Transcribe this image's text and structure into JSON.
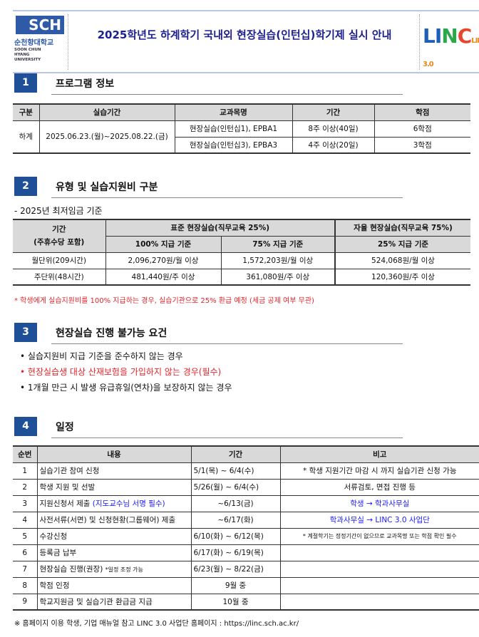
{
  "header": {
    "title": "2025학년도 하계학기 국내외 현장실습(인턴십)학기제 실시 안내",
    "logo_sch": "SCH",
    "logo_ko": "순천향대학교",
    "logo_en": "SOON CHUN HYANG UNIVERSITY",
    "logo_linc": "LINC 3.0"
  },
  "colors": {
    "accent": "#1e4f97",
    "title": "#1d1f8f",
    "red": "#e8232a",
    "blue": "#1a1aff"
  },
  "sections": [
    {
      "num": "1",
      "title": "프로그램 정보"
    },
    {
      "num": "2",
      "title": "유형 및 실습지원비 구분"
    },
    {
      "num": "3",
      "title": "현장실습 진행 불가능 요건"
    },
    {
      "num": "4",
      "title": "일정"
    }
  ],
  "program": {
    "headers": [
      "구분",
      "실습기간",
      "교과목명",
      "기간",
      "학점"
    ],
    "term": "하계",
    "period": "2025.06.23.(월)~2025.08.22.(금)",
    "rows": [
      {
        "course": "현장실습(인턴십1), EPBA1",
        "duration": "8주 이상(40일)",
        "credit": "6학점"
      },
      {
        "course": "현장실습(인턴십3), EPBA3",
        "duration": "4주 이상(20일)",
        "credit": "3학점"
      }
    ]
  },
  "support": {
    "basis": "- 2025년 최저임금 기준",
    "h_period": "기간",
    "h_period2": "(주휴수당 포함)",
    "h_standard": "표준 현장실습(직무교육 25%)",
    "h_auto": "자율 현장실습(직무교육 75%)",
    "sub": [
      "100% 지급 기준",
      "75% 지급 기준",
      "25% 지급 기준"
    ],
    "rows": [
      [
        "월단위(209시간)",
        "2,096,270원/월 이상",
        "1,572,203원/월 이상",
        "524,068원/월 이상"
      ],
      [
        "주단위(48시간)",
        "481,440원/주 이상",
        "361,080원/주 이상",
        "120,360원/주 이상"
      ]
    ],
    "note": "* 학생에게 실습지원비를 100% 지급하는 경우, 실습기관으로 25% 환급 예정 (세금 공제 여부 무관)"
  },
  "conditions": [
    {
      "text": "실습지원비 지급 기준을 준수하지 않는 경우",
      "red": false
    },
    {
      "text": "현장실습생 대상 산재보험을 가입하지 않는 경우(필수)",
      "red": true
    },
    {
      "text": "1개월 만근 시 발생 유급휴일(연차)을 보장하지 않는 경우",
      "red": false
    }
  ],
  "schedule": {
    "headers": [
      "순번",
      "내용",
      "기간",
      "비고"
    ],
    "rows": [
      {
        "no": "1",
        "content": "실습기관 참여 신청",
        "extra": "",
        "period": "5/1(목) ~ 6/4(수)",
        "note": "* 학생 지원기간 마감 시 까지 실습기관 신청 가능",
        "note_style": ""
      },
      {
        "no": "2",
        "content": "학생 지원 및 선발",
        "extra": "",
        "period": "5/26(월) ~ 6/4(수)",
        "note": "서류검토, 면접 진행 등",
        "note_style": ""
      },
      {
        "no": "3",
        "content": "지원신청서 제출 ",
        "extra": "(지도교수님 서명 필수)",
        "period": "~6/13(금)",
        "note": "학생 → 학과사무실",
        "note_style": "blue"
      },
      {
        "no": "4",
        "content": "사전서류(서면) 및 신청현황(그룹웨어) 제출",
        "extra": "",
        "period": "~6/17(화)",
        "note": "학과사무실 → LINC 3.0 사업단",
        "note_style": "blue"
      },
      {
        "no": "5",
        "content": "수강신청",
        "extra": "",
        "period": "6/10(화) ~ 6/12(목)",
        "note": "* 계절학기는 정정기간이 없으므로 교과목명 또는 학점 확인 필수",
        "note_style": "small"
      },
      {
        "no": "6",
        "content": "등록금 납부",
        "extra": "",
        "period": "6/17(화) ~ 6/19(목)",
        "note": "",
        "note_style": ""
      },
      {
        "no": "7",
        "content": "현장실습 진행(권장) ",
        "extra": "*일정 조정 가능",
        "period": "6/23(월) ~ 8/22(금)",
        "note": "",
        "note_style": ""
      },
      {
        "no": "8",
        "content": "학점 인정",
        "extra": "",
        "period": "9월 중",
        "note": "",
        "note_style": ""
      },
      {
        "no": "9",
        "content": "학교지원금 및 실습기관 환급금 지급",
        "extra": "",
        "period": "10월 중",
        "note": "",
        "note_style": ""
      }
    ]
  },
  "footer": "※ 홈페이지 이용 학생, 기업 매뉴얼 참고 LINC 3.0 사업단 홈페이지 : https://linc.sch.ac.kr/"
}
